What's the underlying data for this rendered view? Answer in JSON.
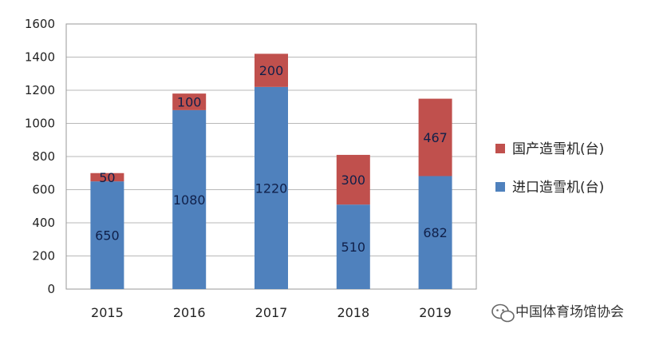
{
  "chart_data": {
    "type": "bar",
    "stacked": true,
    "categories": [
      "2015",
      "2016",
      "2017",
      "2018",
      "2019"
    ],
    "series": [
      {
        "name": "进口造雪机(台)",
        "values": [
          650,
          1080,
          1220,
          510,
          682
        ],
        "color": "#4f81bd"
      },
      {
        "name": "国产造雪机(台)",
        "values": [
          50,
          100,
          200,
          300,
          467
        ],
        "color": "#c0504d"
      }
    ],
    "ylim": [
      0,
      1600
    ],
    "yticks": [
      0,
      200,
      400,
      600,
      800,
      1000,
      1200,
      1400,
      1600
    ],
    "grid": true,
    "legend_position": "right"
  },
  "watermark": {
    "text": "中国体育场馆协会",
    "icon": "wechat-icon"
  }
}
